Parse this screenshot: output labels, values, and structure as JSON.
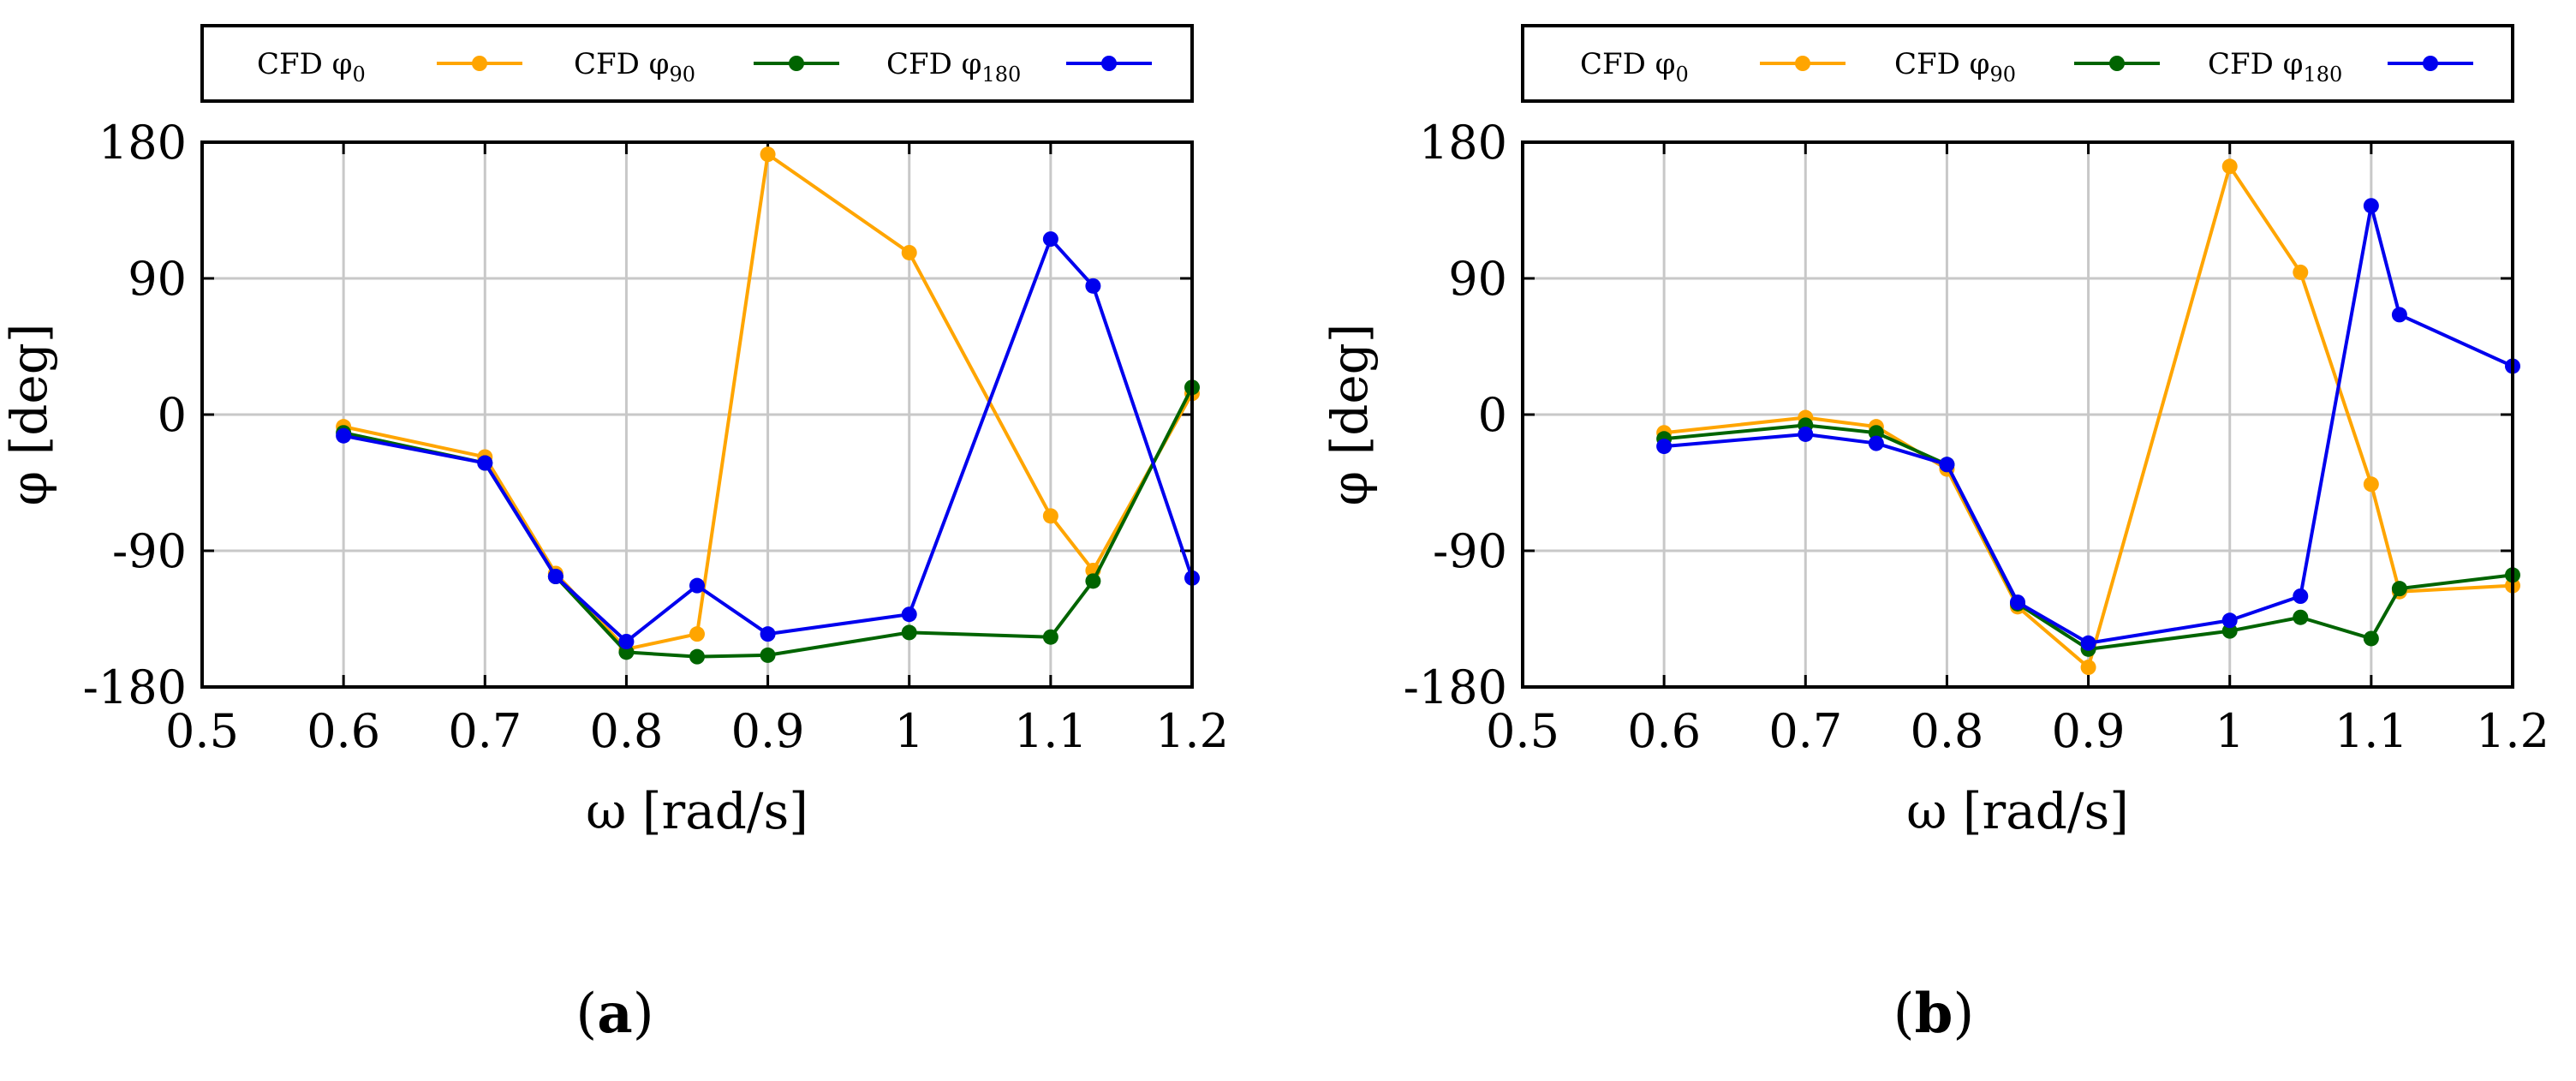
{
  "chart_data": [
    {
      "type": "line",
      "panel_label": "a",
      "xlabel": "ω [rad/s]",
      "ylabel": "φ [deg]",
      "xlim": [
        0.5,
        1.2
      ],
      "ylim": [
        -180,
        180
      ],
      "xticks": [
        0.5,
        0.6,
        0.7,
        0.8,
        0.9,
        1.0,
        1.1,
        1.2
      ],
      "xtick_labels": [
        "0.5",
        "0.6",
        "0.7",
        "0.8",
        "0.9",
        "1",
        "1.1",
        "1.2"
      ],
      "yticks": [
        -180,
        -90,
        0,
        90,
        180
      ],
      "ytick_labels": [
        "-180",
        "-90",
        "0",
        "90",
        "180"
      ],
      "grid": true,
      "legend_position": "top",
      "series": [
        {
          "name": "CFD φ",
          "subscript": "0",
          "color": "#FFA500",
          "x": [
            0.6,
            0.7,
            0.75,
            0.8,
            0.85,
            0.9,
            1.0,
            1.1,
            1.13,
            1.2
          ],
          "y": [
            -8,
            -28,
            -105,
            -155,
            -145,
            172,
            107,
            -67,
            -103,
            14
          ]
        },
        {
          "name": "CFD φ",
          "subscript": "90",
          "color": "#006400",
          "x": [
            0.6,
            0.7,
            0.75,
            0.8,
            0.85,
            0.9,
            1.0,
            1.1,
            1.13,
            1.2
          ],
          "y": [
            -12,
            -32,
            -107,
            -157,
            -160,
            -159,
            -144,
            -147,
            -110,
            18
          ]
        },
        {
          "name": "CFD φ",
          "subscript": "180",
          "color": "#0000EE",
          "x": [
            0.6,
            0.7,
            0.75,
            0.8,
            0.85,
            0.9,
            1.0,
            1.1,
            1.13,
            1.2
          ],
          "y": [
            -14,
            -32,
            -107,
            -150,
            -113,
            -145,
            -132,
            116,
            85,
            -108
          ]
        }
      ]
    },
    {
      "type": "line",
      "panel_label": "b",
      "xlabel": "ω [rad/s]",
      "ylabel": "φ [deg]",
      "xlim": [
        0.5,
        1.2
      ],
      "ylim": [
        -180,
        180
      ],
      "xticks": [
        0.5,
        0.6,
        0.7,
        0.8,
        0.9,
        1.0,
        1.1,
        1.2
      ],
      "xtick_labels": [
        "0.5",
        "0.6",
        "0.7",
        "0.8",
        "0.9",
        "1",
        "1.1",
        "1.2"
      ],
      "yticks": [
        -180,
        -90,
        0,
        90,
        180
      ],
      "ytick_labels": [
        "-180",
        "-90",
        "0",
        "90",
        "180"
      ],
      "grid": true,
      "legend_position": "top",
      "series": [
        {
          "name": "CFD φ",
          "subscript": "0",
          "color": "#FFA500",
          "x": [
            0.6,
            0.7,
            0.75,
            0.8,
            0.85,
            0.9,
            1.0,
            1.05,
            1.1,
            1.12,
            1.2
          ],
          "y": [
            -12,
            -2,
            -8,
            -36,
            -127,
            -167,
            164,
            94,
            -46,
            -117,
            -113
          ]
        },
        {
          "name": "CFD φ",
          "subscript": "90",
          "color": "#006400",
          "x": [
            0.6,
            0.7,
            0.75,
            0.8,
            0.85,
            0.9,
            1.0,
            1.05,
            1.1,
            1.12,
            1.2
          ],
          "y": [
            -16,
            -7,
            -12,
            -33,
            -125,
            -155,
            -143,
            -134,
            -148,
            -115,
            -106
          ]
        },
        {
          "name": "CFD φ",
          "subscript": "180",
          "color": "#0000EE",
          "x": [
            0.6,
            0.7,
            0.75,
            0.8,
            0.85,
            0.9,
            1.0,
            1.05,
            1.1,
            1.12,
            1.2
          ],
          "y": [
            -21,
            -13,
            -19,
            -33,
            -124,
            -151,
            -136,
            -120,
            138,
            66,
            32
          ]
        }
      ]
    }
  ]
}
